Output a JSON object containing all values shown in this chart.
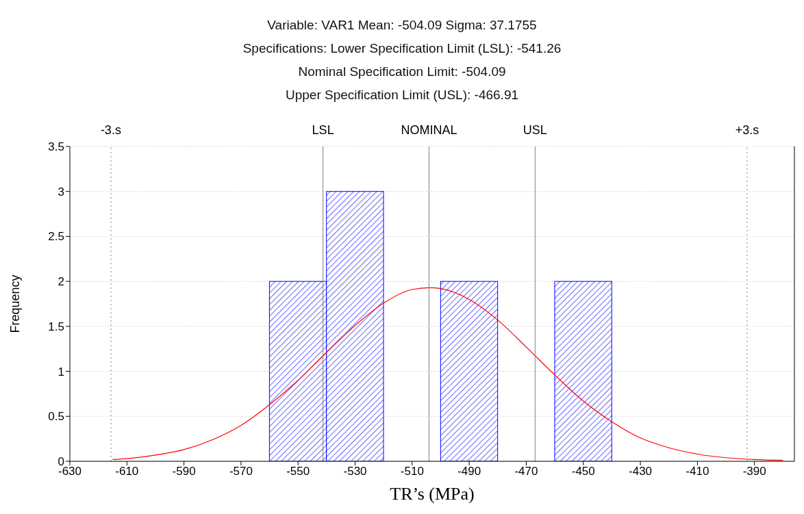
{
  "chart_data": {
    "type": "histogram",
    "title": "Variable: VAR1 Mean: -504.09 Sigma: 37.1755",
    "subtitle": "Specifications: Lower Specification Limit (LSL): -541.26\nNominal Specification Limit: -504.09\nUpper Specification Limit (USL): -466.91",
    "xlabel": "TR’s (MPa)",
    "ylabel": "Frequency",
    "bins": [
      -600,
      -580,
      -560,
      -540,
      -520,
      -500,
      -480,
      -460,
      -440,
      -420
    ],
    "values": [
      0,
      0,
      2,
      3,
      0,
      2,
      0,
      2,
      0
    ],
    "color": "#0000ff",
    "series": [
      {
        "type": "line",
        "color": "#ff0000",
        "x": [
          -615,
          -610,
          -600,
          -590,
          -580,
          -570,
          -560,
          -550,
          -540,
          -530,
          -520,
          -510,
          -504,
          -500,
          -490,
          -480,
          -470,
          -460,
          -450,
          -440,
          -430,
          -420,
          -410,
          -400,
          -390,
          -380
        ],
        "values": [
          0.02,
          0.03,
          0.07,
          0.13,
          0.24,
          0.4,
          0.63,
          0.9,
          1.21,
          1.51,
          1.76,
          1.91,
          1.93,
          1.92,
          1.8,
          1.57,
          1.27,
          0.96,
          0.67,
          0.44,
          0.26,
          0.15,
          0.08,
          0.04,
          0.02,
          0.01
        ]
      }
    ],
    "xlim": [
      -630,
      -376
    ],
    "xticks": [
      -630,
      -610,
      -590,
      -570,
      -550,
      -530,
      -510,
      -490,
      -470,
      -450,
      -430,
      -410,
      -390
    ],
    "ylim": [
      0,
      3.5
    ],
    "yticks": [
      0,
      0.5,
      1,
      1.5,
      2,
      2.5,
      3,
      3.5
    ],
    "grid": "y",
    "ref_lines": [
      {
        "axis": "x",
        "value": -615.62,
        "label": "-3.s",
        "color": "#808080",
        "line_style": "dotted"
      },
      {
        "axis": "x",
        "value": -541.26,
        "label": "LSL",
        "color": "#808080",
        "line_style": "solid"
      },
      {
        "axis": "x",
        "value": -504.09,
        "label": "NOMINAL",
        "color": "#808080",
        "line_style": "solid"
      },
      {
        "axis": "x",
        "value": -466.91,
        "label": "USL",
        "color": "#808080",
        "line_style": "solid"
      },
      {
        "axis": "x",
        "value": -392.56,
        "label": "+3.s",
        "color": "#808080",
        "line_style": "dotted"
      }
    ]
  }
}
